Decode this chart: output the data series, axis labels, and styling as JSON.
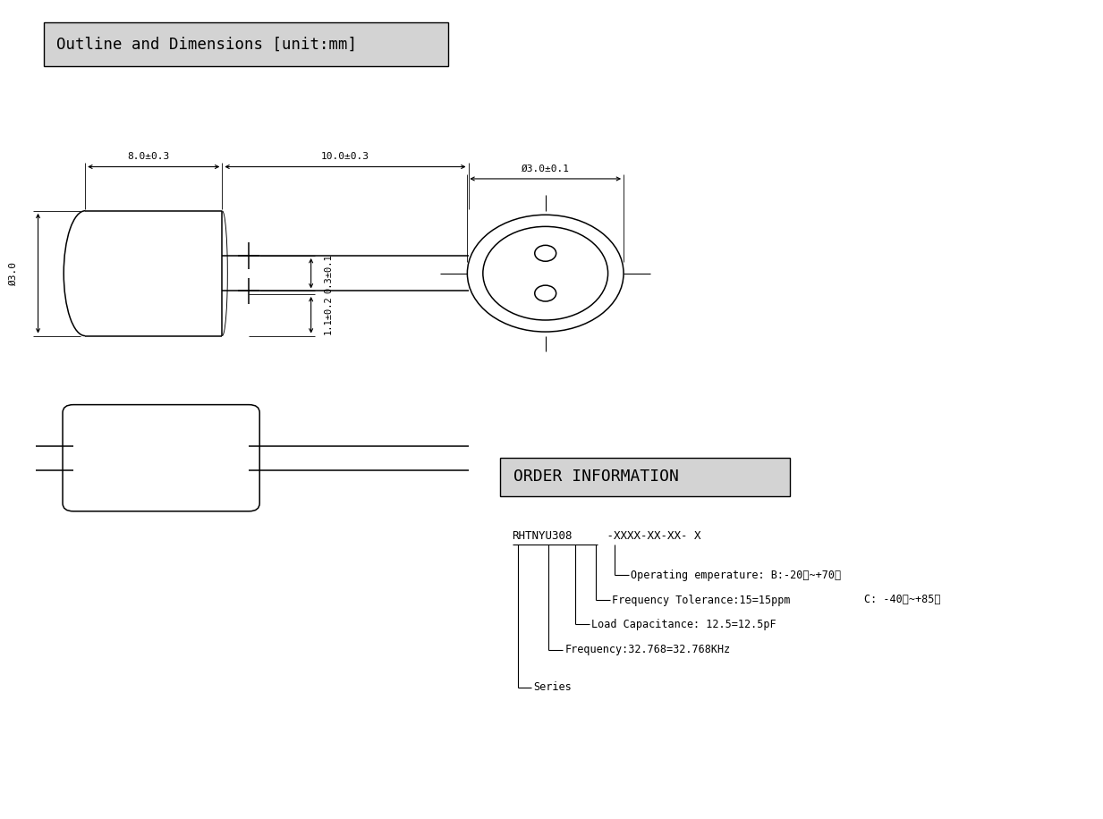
{
  "bg_color": "#ffffff",
  "lc": "#000000",
  "title_text": "Outline and Dimensions [unit:mm]",
  "title_bg": "#d3d3d3",
  "order_title_text": "ORDER INFORMATION",
  "order_title_bg": "#d3d3d3",
  "dim_body_len": "8.0±0.3",
  "dim_lead_len": "10.0±0.3",
  "dim_body_dia": "Ø3.0",
  "dim_front_dia": "Ø3.0±0.1",
  "dim_pin_gap": "0.3±0.1",
  "dim_pin_w": "1.1±0.2",
  "branch_labels": [
    "Operating emperature: B:-20℃~+70℃",
    "C: -40℃~+85℃",
    "Frequency Tolerance:15=15ppm",
    "Load Capacitance: 12.5=12.5pF",
    "Frequency:32.768=32.768KHz",
    "Series"
  ]
}
